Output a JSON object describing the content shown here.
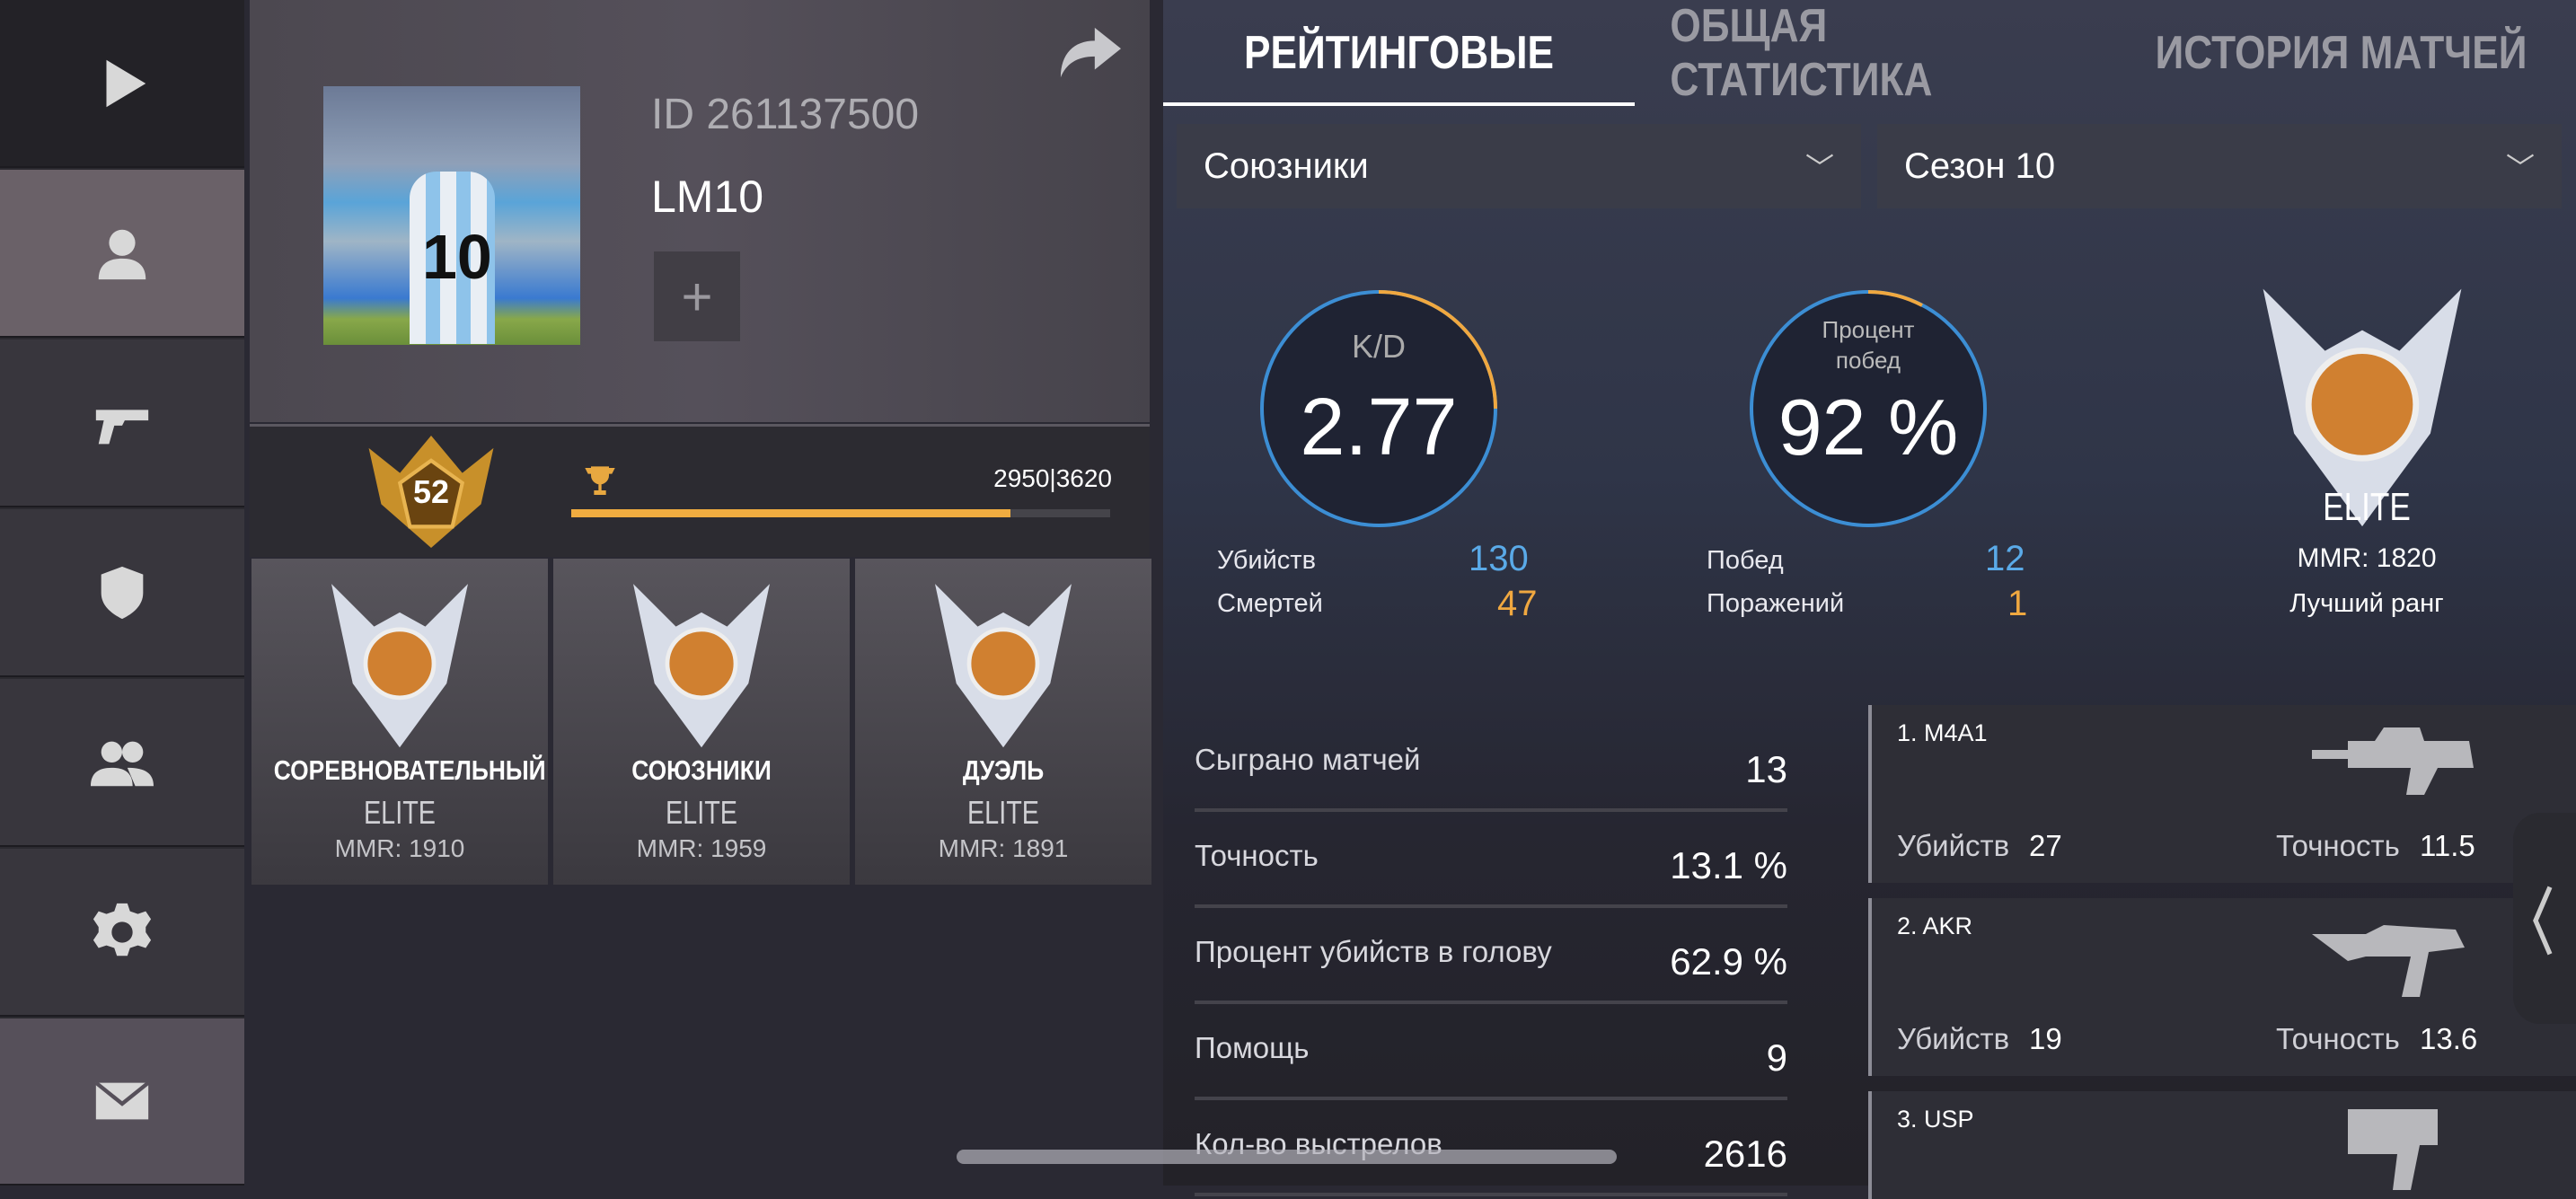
{
  "sidebar": {
    "items": [
      {
        "icon": "play-icon"
      },
      {
        "icon": "profile-icon",
        "active": true
      },
      {
        "icon": "pistol-icon"
      },
      {
        "icon": "shield-icon"
      },
      {
        "icon": "friends-icon"
      },
      {
        "icon": "gear-icon"
      },
      {
        "icon": "mail-icon"
      }
    ]
  },
  "profile": {
    "id": "ID 261137500",
    "name": "LM10",
    "avatar_number": "10",
    "plus": "+",
    "level": "52",
    "xp": "2950|3620",
    "xp_progress": 0.815
  },
  "ranks": [
    {
      "mode": "СОРЕВНОВАТЕЛЬНЫЙ",
      "rank": "ELITE",
      "mmr": "MMR: 1910"
    },
    {
      "mode": "СОЮЗНИКИ",
      "rank": "ELITE",
      "mmr": "MMR: 1959"
    },
    {
      "mode": "ДУЭЛЬ",
      "rank": "ELITE",
      "mmr": "MMR: 1891"
    }
  ],
  "tabs": [
    {
      "label": "РЕЙТИНГОВЫЕ",
      "active": true
    },
    {
      "label": "ОБЩАЯ СТАТИСТИКА"
    },
    {
      "label": "ИСТОРИЯ МАТЧЕЙ"
    }
  ],
  "filters": {
    "mode": "Союзники",
    "season": "Сезон 10"
  },
  "kd": {
    "label": "K/D",
    "value": "2.77",
    "kills_label": "Убийств",
    "kills": "130",
    "deaths_label": "Смертей",
    "deaths": "47"
  },
  "winrate": {
    "label": "Процент побед",
    "value": "92 %",
    "wins_label": "Побед",
    "wins": "12",
    "losses_label": "Поражений",
    "losses": "1"
  },
  "best_rank": {
    "rank": "ELITE",
    "mmr": "MMR: 1820",
    "label": "Лучший ранг"
  },
  "stats": [
    {
      "label": "Сыграно матчей",
      "value": "13"
    },
    {
      "label": "Точность",
      "value": "13.1 %"
    },
    {
      "label": "Процент убийств в голову",
      "value": "62.9 %"
    },
    {
      "label": "Помощь",
      "value": "9"
    },
    {
      "label": "Кол-во выстрелов",
      "value": "2616"
    }
  ],
  "weapons": [
    {
      "name": "1. M4A1",
      "kills_label": "Убийств",
      "kills": "27",
      "acc_label": "Точность",
      "acc": "11.5"
    },
    {
      "name": "2. AKR",
      "kills_label": "Убийств",
      "kills": "19",
      "acc_label": "Точность",
      "acc": "13.6"
    },
    {
      "name": "3. USP"
    }
  ],
  "colors": {
    "accent_orange": "#f0a840",
    "accent_blue": "#4a9ee0"
  }
}
